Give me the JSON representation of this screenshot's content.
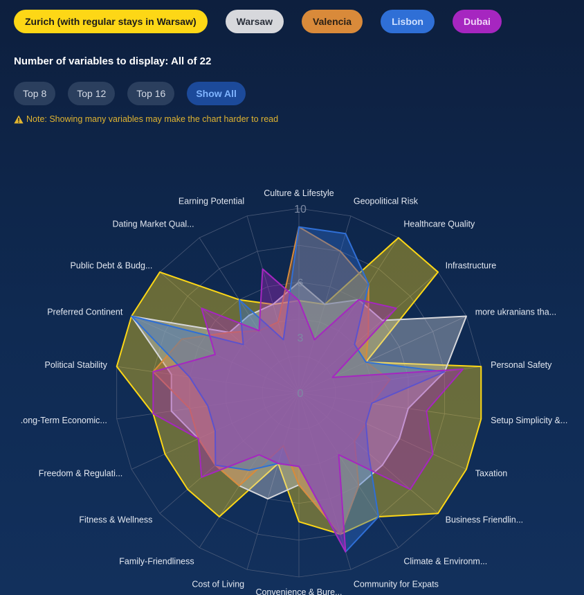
{
  "cities": [
    {
      "label": "Zurich (with regular stays in Warsaw)",
      "bg": "#fdd716",
      "fg": "#1a1a1a"
    },
    {
      "label": "Warsaw",
      "bg": "#d7d8dc",
      "fg": "#2a2f3a"
    },
    {
      "label": "Valencia",
      "bg": "#d98a3a",
      "fg": "#2a2015"
    },
    {
      "label": "Lisbon",
      "bg": "#2f6fd6",
      "fg": "#cfe0ff"
    },
    {
      "label": "Dubai",
      "bg": "#a626c0",
      "fg": "#f1d6f8"
    }
  ],
  "display": {
    "heading": "Number of variables to display: All of 22",
    "buttons": [
      "Top 8",
      "Top 12",
      "Top 16",
      "Show All"
    ],
    "active_button": "Show All",
    "note": "Note: Showing many variables may make the chart harder to read",
    "note_icon": "warning-icon",
    "note_color": "#e0b431"
  },
  "chart_data": {
    "type": "radar",
    "axes": [
      "Culture & Lifestyle",
      "Geopolitical Risk",
      "Healthcare Quality",
      "Infrastructure",
      "more ukranians tha...",
      "Personal Safety",
      "Setup Simplicity &...",
      "Taxation",
      "Business Friendlin...",
      "Climate & Environm...",
      "Community for Expats",
      "Convenience & Bure...",
      "Cost of Living",
      "Family-Friendliness",
      "Fitness & Wellness",
      "Freedom & Regulati...",
      ".ong-Term Economic...",
      "Political Stability",
      "Preferred Continent",
      "Public Debt & Budg...",
      "Dating Market Qual...",
      "Earning Potential"
    ],
    "r_ticks": [
      0,
      3,
      6,
      10
    ],
    "range": [
      0,
      10
    ],
    "series": [
      {
        "name": "Zurich (with regular stays in Warsaw)",
        "color": "#fdd716",
        "values": [
          5,
          5,
          10,
          10,
          4,
          10,
          10,
          10,
          10,
          8,
          8,
          7,
          4,
          8,
          8,
          8,
          8,
          10,
          10,
          10,
          6,
          5
        ]
      },
      {
        "name": "Warsaw",
        "color": "#d7d8dc",
        "values": [
          6,
          5,
          6,
          6,
          10,
          8,
          6,
          6,
          6,
          6,
          8,
          5,
          6,
          6,
          6,
          6,
          7,
          7,
          10,
          5,
          5,
          5
        ]
      },
      {
        "name": "Valencia",
        "color": "#d98a3a",
        "values": [
          9,
          8,
          7,
          5,
          4,
          5,
          4,
          4,
          4,
          6,
          8,
          5,
          3,
          6,
          6,
          6,
          6,
          8,
          7,
          5,
          4,
          4
        ]
      },
      {
        "name": "Lisbon",
        "color": "#2f6fd6",
        "values": [
          9,
          9,
          7,
          4,
          4,
          8,
          4,
          4,
          5,
          8,
          9,
          4,
          4,
          5,
          6,
          5,
          5,
          6,
          10,
          4,
          6,
          3
        ]
      },
      {
        "name": "Dubai",
        "color": "#a626c0",
        "values": [
          5,
          3,
          6,
          7,
          2,
          9,
          7,
          8,
          8,
          4,
          9,
          4,
          4,
          4,
          7,
          6,
          8,
          8,
          5,
          7,
          4,
          7
        ]
      }
    ]
  }
}
